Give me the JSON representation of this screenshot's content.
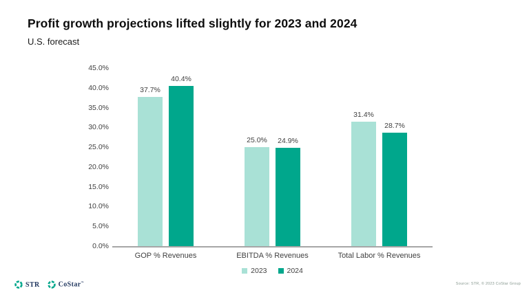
{
  "header": {
    "title": "Profit growth projections lifted slightly for 2023 and 2024",
    "subtitle": "U.S. forecast"
  },
  "chart_data": {
    "type": "bar",
    "title": "Profit growth projections lifted slightly for 2023 and 2024",
    "subtitle": "U.S. forecast",
    "categories": [
      "GOP % Revenues",
      "EBITDA % Revenues",
      "Total Labor % Revenues"
    ],
    "series": [
      {
        "name": "2023",
        "color": "#A9E1D6",
        "values": [
          37.7,
          25.0,
          31.4
        ]
      },
      {
        "name": "2024",
        "color": "#00A78C",
        "values": [
          40.4,
          24.9,
          28.7
        ]
      }
    ],
    "value_labels": [
      [
        "37.7%",
        "40.4%"
      ],
      [
        "25.0%",
        "24.9%"
      ],
      [
        "31.4%",
        "28.7%"
      ]
    ],
    "y_ticks": [
      "45.0%",
      "40.0%",
      "35.0%",
      "30.0%",
      "25.0%",
      "20.0%",
      "15.0%",
      "10.0%",
      "5.0%",
      "0.0%"
    ],
    "ylim": [
      0,
      45
    ],
    "xlabel": "",
    "ylabel": "",
    "grid": false,
    "legend_position": "bottom"
  },
  "footer": {
    "str_label": "STR",
    "costar_label": "CoStar",
    "costar_mark": "™",
    "source": "Source: STR, © 2023 CoStar Group"
  },
  "colors": {
    "series_2023": "#A9E1D6",
    "series_2024": "#00A78C",
    "axis_line": "#A6A6A6",
    "label_text": "#404040",
    "logo_green": "#00A78C",
    "logo_navy": "#21375F"
  }
}
